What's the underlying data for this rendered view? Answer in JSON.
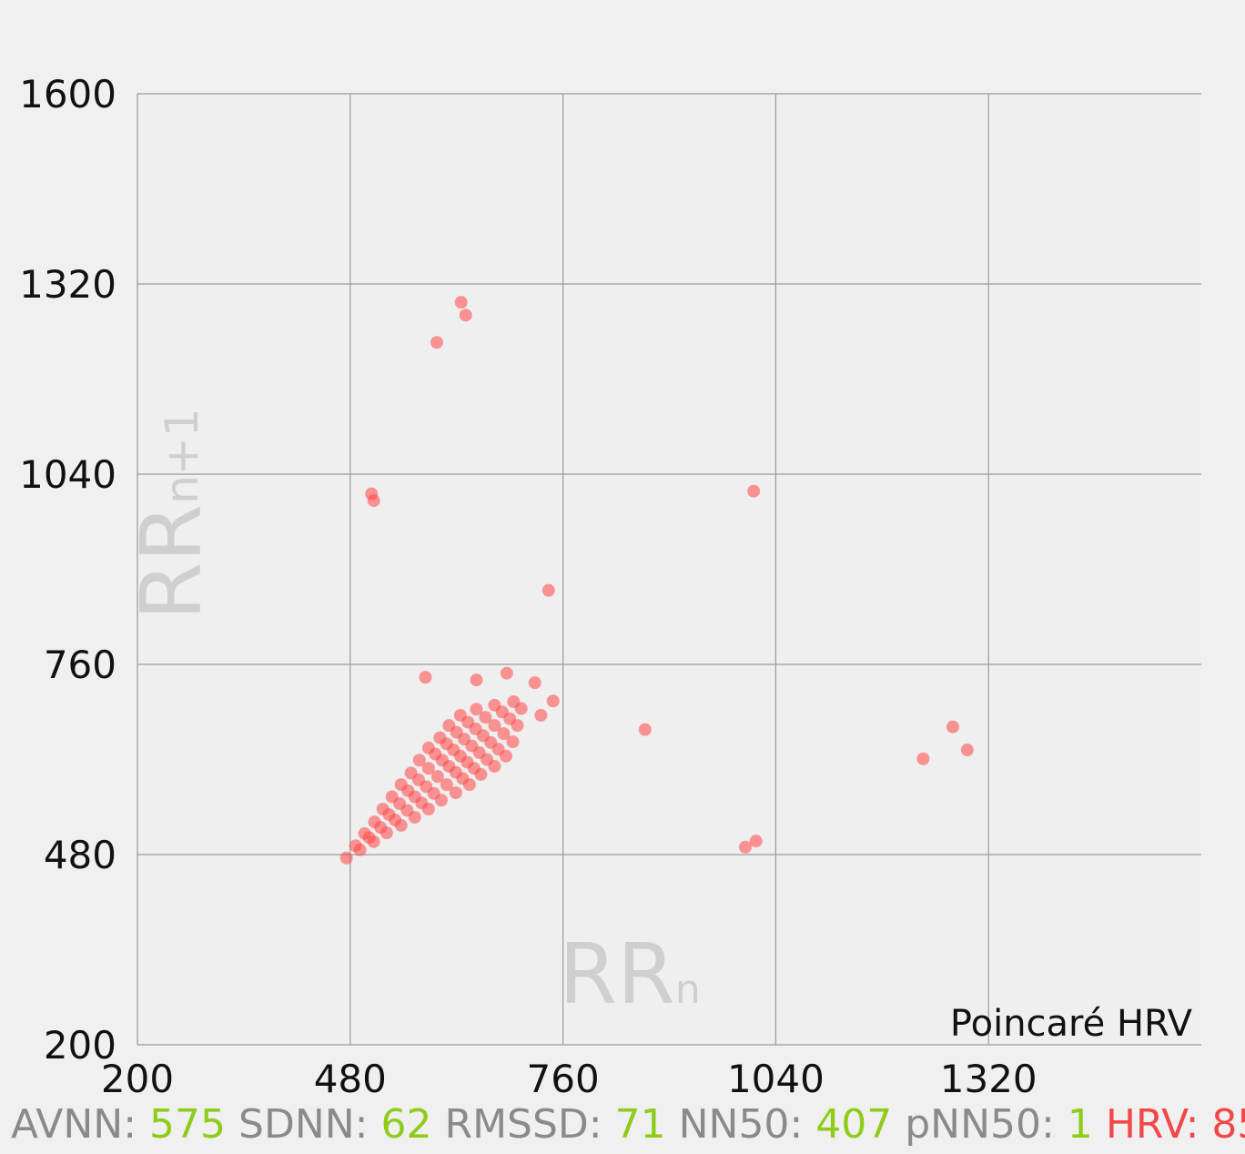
{
  "chart_data": {
    "type": "scatter",
    "title": "Poincaré HRV",
    "xlabel": {
      "main": "RR",
      "sub": "n"
    },
    "ylabel": {
      "main": "RR",
      "sub": "n+1"
    },
    "xlim": [
      200,
      1600
    ],
    "ylim": [
      200,
      1600
    ],
    "xticks": [
      200,
      480,
      760,
      1040,
      1320
    ],
    "yticks": [
      200,
      480,
      760,
      1040,
      1320,
      1600
    ],
    "grid": true,
    "color": "#ff4545",
    "x": [
      475,
      493,
      487,
      511,
      505,
      499,
      528,
      520,
      512,
      547,
      539,
      531,
      523,
      565,
      555,
      545,
      535,
      583,
      574,
      565,
      556,
      547,
      600,
      590,
      580,
      570,
      560,
      619,
      607,
      595,
      583,
      571,
      637,
      628,
      619,
      610,
      601,
      592,
      583,
      652,
      643,
      634,
      625,
      616,
      607,
      598,
      670,
      660,
      650,
      640,
      630,
      620,
      610,
      685,
      675,
      665,
      655,
      645,
      635,
      625,
      694,
      682,
      670,
      658,
      646,
      700,
      690,
      680,
      670,
      705,
      695,
      626,
      632,
      594,
      508,
      511,
      1011,
      741,
      868,
      1273,
      1292,
      1234,
      1000,
      1014,
      579,
      646,
      686,
      723,
      747,
      731
    ],
    "y": [
      475,
      487,
      493,
      499,
      505,
      511,
      512,
      520,
      528,
      523,
      531,
      539,
      547,
      535,
      545,
      555,
      565,
      547,
      556,
      565,
      574,
      583,
      560,
      570,
      580,
      590,
      600,
      571,
      583,
      595,
      607,
      619,
      583,
      592,
      601,
      610,
      619,
      628,
      637,
      598,
      607,
      616,
      625,
      634,
      643,
      652,
      610,
      620,
      630,
      640,
      650,
      660,
      670,
      625,
      635,
      645,
      655,
      665,
      675,
      685,
      646,
      658,
      670,
      682,
      694,
      670,
      680,
      690,
      700,
      695,
      705,
      1293,
      1274,
      1234,
      1011,
      1001,
      1015,
      869,
      664,
      668,
      634,
      621,
      491,
      500,
      741,
      737,
      747,
      733,
      706,
      685
    ],
    "stats": [
      {
        "label": "AVNN:",
        "value": 575,
        "label_color": "#8a8a8a",
        "value_color": "#8fcc1a"
      },
      {
        "label": "SDNN:",
        "value": 62,
        "label_color": "#8a8a8a",
        "value_color": "#8fcc1a"
      },
      {
        "label": "RMSSD:",
        "value": 71,
        "label_color": "#8a8a8a",
        "value_color": "#8fcc1a"
      },
      {
        "label": "NN50:",
        "value": 407,
        "label_color": "#8a8a8a",
        "value_color": "#8fcc1a"
      },
      {
        "label": "pNN50:",
        "value": 1,
        "label_color": "#8a8a8a",
        "value_color": "#8fcc1a"
      },
      {
        "label": "HRV:",
        "value": 85,
        "label_color": "#f04848",
        "value_color": "#f04848"
      }
    ]
  }
}
